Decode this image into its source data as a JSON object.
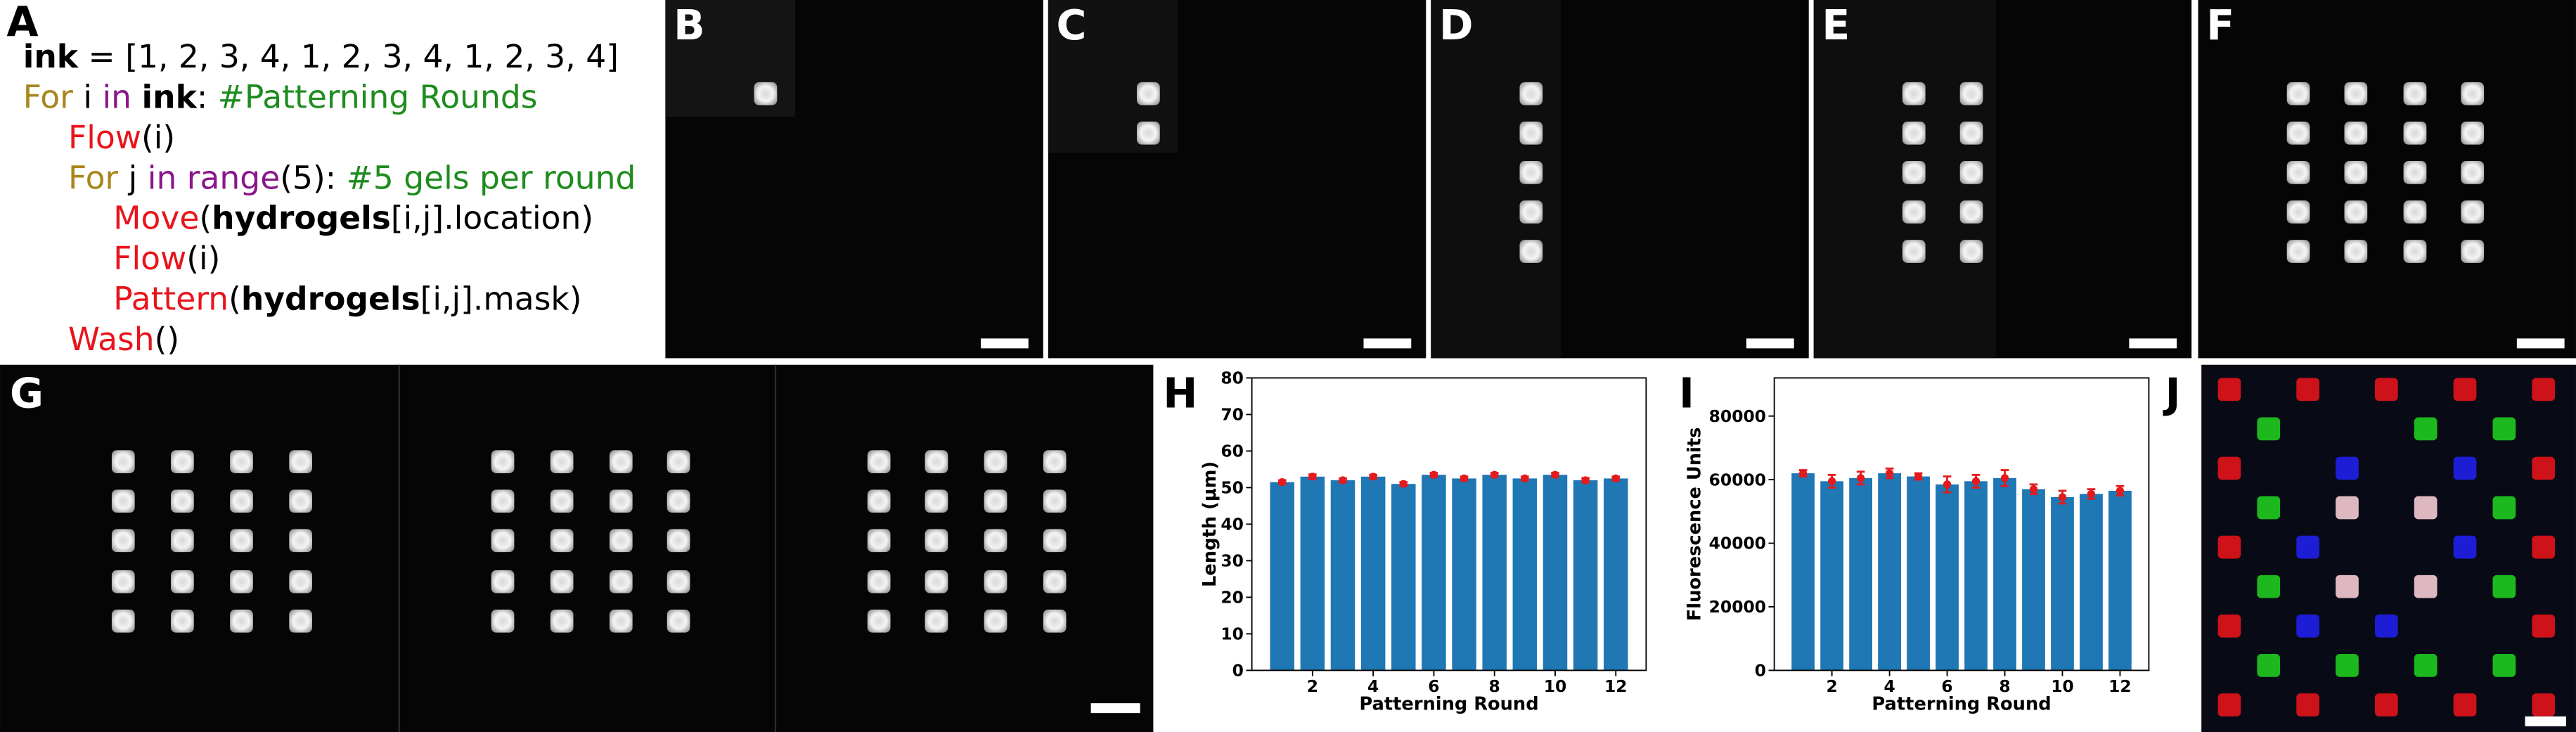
{
  "panel_labels": [
    "A",
    "B",
    "C",
    "D",
    "E",
    "F",
    "G",
    "H",
    "I",
    "J"
  ],
  "code": [
    {
      "level": 0,
      "tokens": [
        {
          "text": "ink",
          "color": "#000000",
          "bold": true
        },
        {
          "text": " = [1, 2, 3, 4, 1, 2, 3, 4, 1, 2, 3, 4]",
          "color": "#000000"
        }
      ]
    },
    {
      "level": 0,
      "tokens": [
        {
          "text": "For",
          "color": "#a8861e"
        },
        {
          "text": " i ",
          "color": "#000000"
        },
        {
          "text": "in ",
          "color": "#8a168a"
        },
        {
          "text": "ink",
          "color": "#000000",
          "bold": true
        },
        {
          "text": ": ",
          "color": "#000000"
        },
        {
          "text": "#Patterning Rounds",
          "color": "#1e8c1e"
        }
      ]
    },
    {
      "level": 1,
      "tokens": [
        {
          "text": "Flow",
          "color": "#e8141b"
        },
        {
          "text": "(i)",
          "color": "#000000"
        }
      ]
    },
    {
      "level": 1,
      "tokens": [
        {
          "text": "For",
          "color": "#a8861e"
        },
        {
          "text": " j ",
          "color": "#000000"
        },
        {
          "text": "in ",
          "color": "#8a168a"
        },
        {
          "text": "range",
          "color": "#8a168a"
        },
        {
          "text": "(5): ",
          "color": "#000000"
        },
        {
          "text": "#5 gels per round",
          "color": "#1e8c1e"
        }
      ]
    },
    {
      "level": 2,
      "tokens": [
        {
          "text": "Move",
          "color": "#e8141b"
        },
        {
          "text": "(",
          "color": "#000000"
        },
        {
          "text": "hydrogels",
          "color": "#000000",
          "bold": true
        },
        {
          "text": "[i,j].location)",
          "color": "#000000"
        }
      ]
    },
    {
      "level": 2,
      "tokens": [
        {
          "text": "Flow",
          "color": "#e8141b"
        },
        {
          "text": "(i)",
          "color": "#000000"
        }
      ]
    },
    {
      "level": 2,
      "tokens": [
        {
          "text": "Pattern",
          "color": "#e8141b"
        },
        {
          "text": "(",
          "color": "#000000"
        },
        {
          "text": "hydrogels",
          "color": "#000000",
          "bold": true
        },
        {
          "text": "[i,j].mask)",
          "color": "#000000"
        }
      ]
    },
    {
      "level": 1,
      "tokens": [
        {
          "text": "Wash",
          "color": "#e8141b"
        },
        {
          "text": "()",
          "color": "#000000"
        }
      ]
    }
  ],
  "chart_data": [
    {
      "type": "bar",
      "xlabel": "Patterning Round",
      "ylabel": "Length (μm)",
      "x": [
        1,
        2,
        3,
        4,
        5,
        6,
        7,
        8,
        9,
        10,
        11,
        12
      ],
      "values": [
        51.5,
        53,
        52,
        53,
        51,
        53.5,
        52.5,
        53.5,
        52.5,
        53.5,
        52,
        52.5
      ],
      "errors": [
        0.5,
        0.6,
        0.5,
        0.5,
        0.5,
        0.5,
        0.5,
        0.5,
        0.5,
        0.5,
        0.6,
        0.5
      ],
      "color": "#1f77b4",
      "error_color": "#e41a1c",
      "xlim": [
        0,
        13
      ],
      "ylim": [
        0,
        80
      ],
      "xticks": [
        2,
        4,
        6,
        8,
        10,
        12
      ],
      "yticks": [
        0,
        10,
        20,
        30,
        40,
        50,
        60,
        70,
        80
      ]
    },
    {
      "type": "bar",
      "xlabel": "Patterning Round",
      "ylabel": "Fluorescence Units",
      "x": [
        1,
        2,
        3,
        4,
        5,
        6,
        7,
        8,
        9,
        10,
        11,
        12
      ],
      "values": [
        62000,
        59500,
        60500,
        62000,
        61000,
        58500,
        59500,
        60500,
        57000,
        54500,
        55500,
        56500
      ],
      "errors": [
        1000,
        2000,
        2000,
        1500,
        1000,
        2500,
        2000,
        2500,
        1500,
        2000,
        1500,
        1500
      ],
      "color": "#1f77b4",
      "error_color": "#e41a1c",
      "xlim": [
        0,
        13
      ],
      "ylim": [
        0,
        92000
      ],
      "xticks": [
        2,
        4,
        6,
        8,
        10,
        12
      ],
      "yticks": [
        0,
        20000,
        40000,
        60000,
        80000
      ]
    }
  ]
}
